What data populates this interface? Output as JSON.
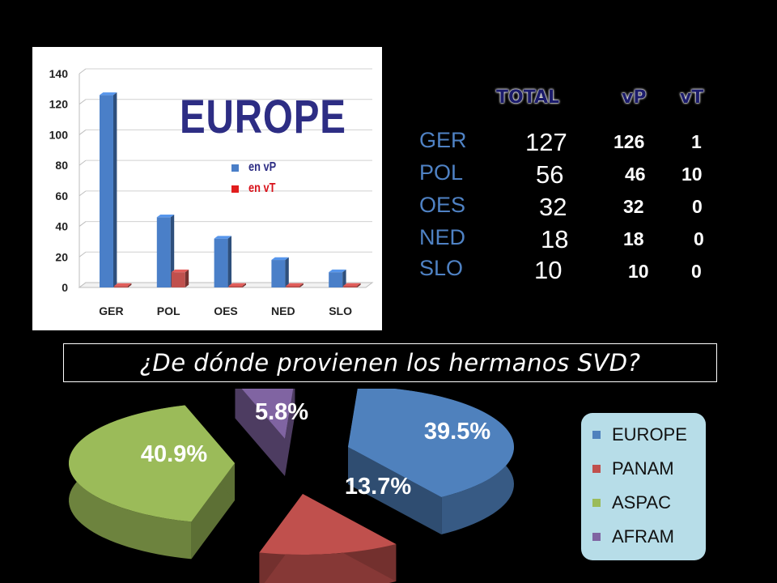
{
  "chart_data": [
    {
      "type": "bar",
      "title": "EUROPE",
      "categories": [
        "GER",
        "POL",
        "OES",
        "NED",
        "SLO"
      ],
      "series": [
        {
          "name": "en vP",
          "color": "#4a7fc8",
          "values": [
            126,
            46,
            32,
            18,
            10
          ]
        },
        {
          "name": "en vT",
          "color": "#c0504d",
          "values": [
            1,
            10,
            0,
            0,
            0
          ]
        }
      ],
      "yticks": [
        0,
        20,
        40,
        60,
        80,
        100,
        120,
        140
      ],
      "ylim": [
        0,
        140
      ],
      "legend": "top-center"
    },
    {
      "type": "pie",
      "title": "¿De dónde provienen los hermanos SVD?",
      "labels": [
        "EUROPE",
        "PANAM",
        "ASPAC",
        "AFRAM"
      ],
      "values": [
        39.5,
        13.7,
        40.9,
        5.8
      ],
      "value_labels": [
        "39.5%",
        "13.7%",
        "40.9%",
        "5.8%"
      ],
      "colors": [
        "#4f81bd",
        "#c0504d",
        "#9bbb59",
        "#8064a2"
      ],
      "legend": "right"
    }
  ],
  "table": {
    "headers": {
      "total": "TOTAL",
      "vp": "vP",
      "vt": "vT"
    },
    "rows": [
      {
        "name": "GER",
        "total": "127",
        "vp": "126",
        "vt": "1"
      },
      {
        "name": "POL",
        "total": "56",
        "vp": "46",
        "vt": "10"
      },
      {
        "name": "OES",
        "total": "32",
        "vp": "32",
        "vt": "0"
      },
      {
        "name": "NED",
        "total": "18",
        "vp": "18",
        "vt": "0"
      },
      {
        "name": "SLO",
        "total": "10",
        "vp": "10",
        "vt": "0"
      }
    ]
  },
  "question": "¿De dónde provienen los hermanos SVD?"
}
